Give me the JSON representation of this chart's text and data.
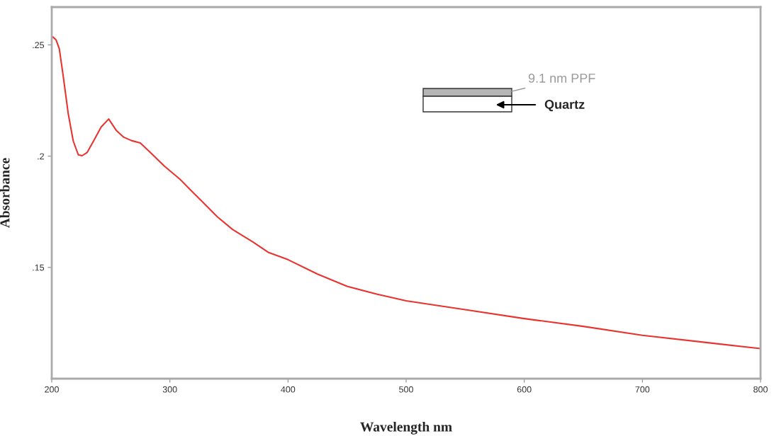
{
  "chart_data": {
    "type": "line",
    "xlabel": "Wavelength nm",
    "ylabel": "Absorbance",
    "xlim": [
      200,
      800
    ],
    "ylim": [
      0.1,
      0.267
    ],
    "xticks": [
      200,
      300,
      400,
      500,
      600,
      700,
      800
    ],
    "yticks": [
      {
        "value": 0.15,
        "label": ".15"
      },
      {
        "value": 0.2,
        "label": ".2"
      },
      {
        "value": 0.25,
        "label": ".25"
      }
    ],
    "grid": false,
    "legend": false,
    "annotations": [
      "9.1 nm PPF",
      "Quartz"
    ],
    "series": [
      {
        "color": "#e8332f",
        "x": [
          200.9,
          203.6,
          206.4,
          209.6,
          213.9,
          218.2,
          222.5,
          225.7,
          230,
          235.4,
          241.8,
          248.2,
          254.6,
          261,
          267.5,
          275,
          284.6,
          295.4,
          308.2,
          316.8,
          327.5,
          340.3,
          353.2,
          370.3,
          383.2,
          400,
          425,
          450,
          475,
          500,
          550,
          600,
          650,
          700,
          750,
          800
        ],
        "values": [
          0.2536,
          0.2523,
          0.2483,
          0.2364,
          0.2193,
          0.2068,
          0.2006,
          0.2002,
          0.2017,
          0.2068,
          0.2131,
          0.2167,
          0.2116,
          0.2085,
          0.207,
          0.2059,
          0.2011,
          0.1955,
          0.1898,
          0.1852,
          0.1795,
          0.1727,
          0.167,
          0.1614,
          0.1568,
          0.1535,
          0.147,
          0.1415,
          0.138,
          0.135,
          0.131,
          0.127,
          0.1235,
          0.1195,
          0.1165,
          0.1135
        ]
      }
    ]
  }
}
